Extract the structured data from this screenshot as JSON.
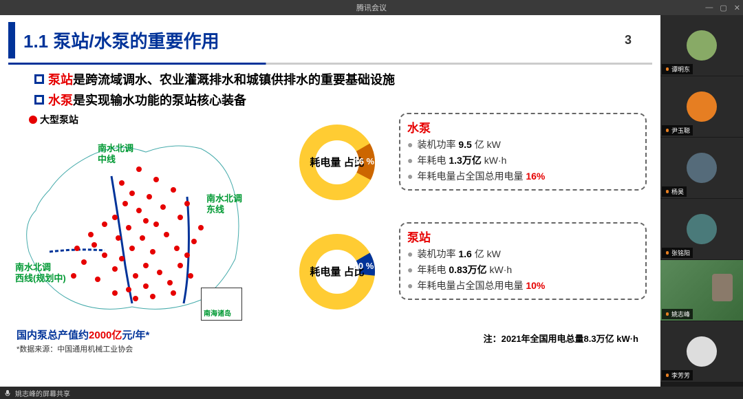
{
  "window": {
    "title": "腾讯会议"
  },
  "controls": {
    "min": "—",
    "max": "▢",
    "close": "✕"
  },
  "slide": {
    "title": "1.1 泵站/水泵的重要作用",
    "pageNum": "3",
    "bullet1_red": "泵站",
    "bullet1_rest": "是跨流域调水、农业灌溉排水和城镇供排水的重要基础设施",
    "bullet2_red": "水泵",
    "bullet2_rest": "是实现输水功能的泵站核心装备",
    "legend": "大型泵站",
    "mapLabels": {
      "mid": "南水北调\n中线",
      "east": "南水北调\n东线",
      "west": "南水北调\n西线(规划中)",
      "islands": "南海诸岛"
    },
    "summary_prefix": "国内泵总产值约",
    "summary_value": "2000亿",
    "summary_suffix": "元/年*",
    "source": "*数据来源：中国通用机械工业协会",
    "donut_center": "耗电量\n占比",
    "footnote": "注：2021年全国用电总量8.3万亿 kW·h"
  },
  "chart1": {
    "title": "水泵",
    "slice_pct": 16,
    "pct_label": "16 %",
    "slice_color": "#cc6600",
    "ring_color": "#ffcc33",
    "items": [
      {
        "label": "装机功率 ",
        "value": "9.5",
        "unit": " 亿 kW"
      },
      {
        "label": "年耗电 ",
        "value": "1.3万亿",
        "unit": " kW·h"
      },
      {
        "label": "年耗电量占全国总用电量 ",
        "value": "16%",
        "red": true
      }
    ]
  },
  "chart2": {
    "title": "泵站",
    "slice_pct": 10,
    "pct_label": "10 %",
    "slice_color": "#003399",
    "ring_color": "#ffcc33",
    "items": [
      {
        "label": "装机功率 ",
        "value": "1.6",
        "unit": " 亿 kW"
      },
      {
        "label": "年耗电 ",
        "value": "0.83万亿",
        "unit": " kW·h"
      },
      {
        "label": "年耗电量占全国总用电量 ",
        "value": "10%",
        "red": true
      }
    ]
  },
  "participants": [
    {
      "name": "谭明东",
      "avatar_bg": "#88aa66"
    },
    {
      "name": "尹玉聪",
      "avatar_bg": "#e67e22"
    },
    {
      "name": "杨昊",
      "avatar_bg": "#556b7a"
    },
    {
      "name": "张铭阳",
      "avatar_bg": "#4a7a7a"
    },
    {
      "name": "姚志峰",
      "video": true
    },
    {
      "name": "李芳芳",
      "avatar_bg": "#ddd"
    }
  ],
  "bottombar": {
    "sharer": "姚志峰的屏幕共享"
  }
}
